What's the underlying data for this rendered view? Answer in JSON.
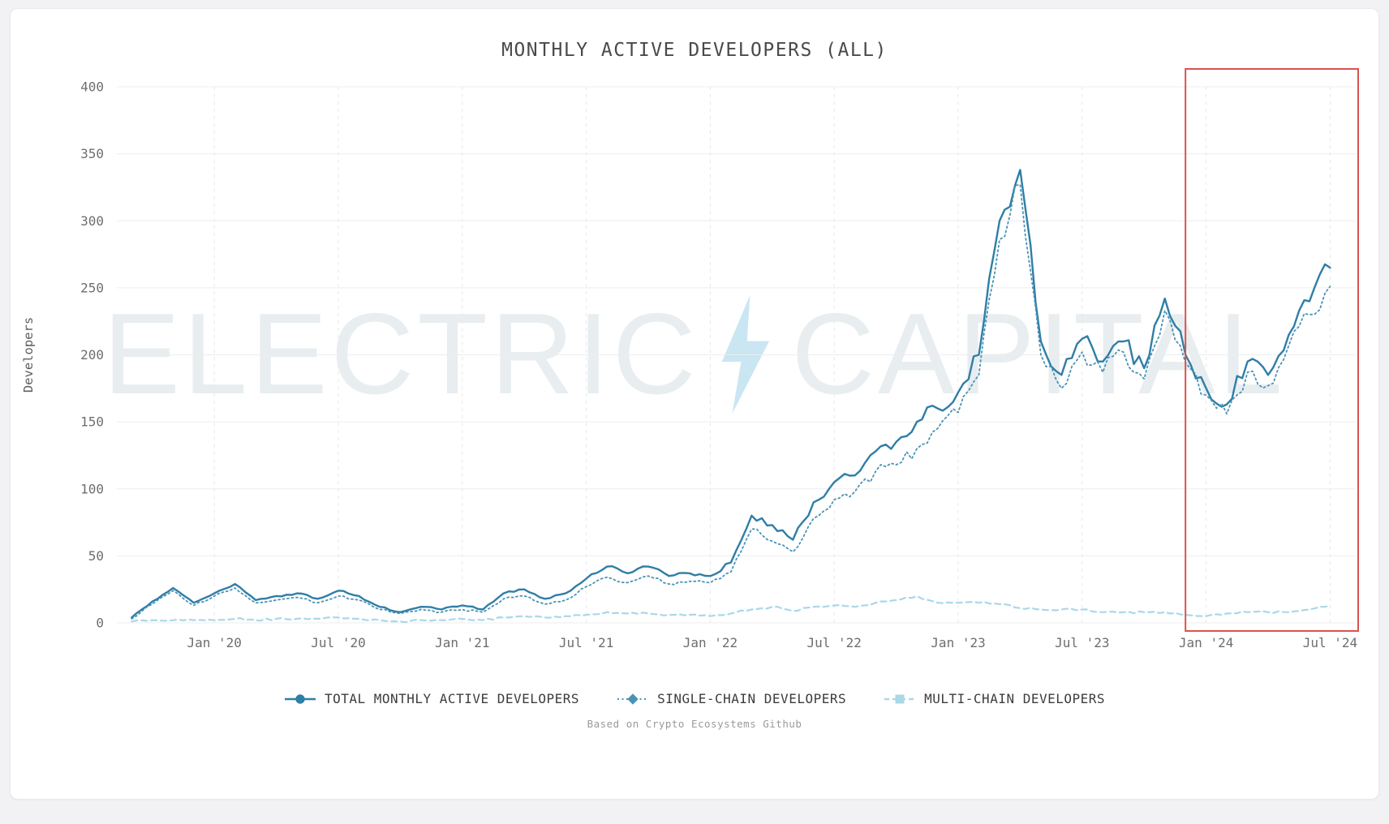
{
  "page": {
    "background_color": "#f2f2f4",
    "card_color": "#ffffff"
  },
  "chart_data": {
    "type": "line",
    "title": "MONTHLY ACTIVE DEVELOPERS (ALL)",
    "xlabel": "",
    "ylabel": "Developers",
    "ylim": [
      0,
      400
    ],
    "yticks": [
      0,
      50,
      100,
      150,
      200,
      250,
      300,
      350,
      400
    ],
    "xticks": [
      "2020-01",
      "2020-07",
      "2021-01",
      "2021-07",
      "2022-01",
      "2022-07",
      "2023-01",
      "2023-07",
      "2024-01",
      "2024-07"
    ],
    "xtick_labels": [
      "Jan '20",
      "Jul '20",
      "Jan '21",
      "Jul '21",
      "Jan '22",
      "Jul '22",
      "Jan '23",
      "Jul '23",
      "Jan '24",
      "Jul '24"
    ],
    "grid": true,
    "legend_position": "bottom",
    "caption": "Based on Crypto Ecosystems Github",
    "watermark": {
      "left": "ELECTRIC",
      "right": "CAPITAL",
      "bolt_icon": "lightning-bolt-icon",
      "bolt_color": "#c9e6f2"
    },
    "highlight": {
      "start_month": "2023-12",
      "end_month": "2024-08",
      "color": "#d9534f"
    },
    "months": [
      "2019-09",
      "2019-10",
      "2019-11",
      "2019-12",
      "2020-01",
      "2020-02",
      "2020-03",
      "2020-04",
      "2020-05",
      "2020-06",
      "2020-07",
      "2020-08",
      "2020-09",
      "2020-10",
      "2020-11",
      "2020-12",
      "2021-01",
      "2021-02",
      "2021-03",
      "2021-04",
      "2021-05",
      "2021-06",
      "2021-07",
      "2021-08",
      "2021-09",
      "2021-10",
      "2021-11",
      "2021-12",
      "2022-01",
      "2022-02",
      "2022-03",
      "2022-04",
      "2022-05",
      "2022-06",
      "2022-07",
      "2022-08",
      "2022-09",
      "2022-10",
      "2022-11",
      "2022-12",
      "2023-01",
      "2023-02",
      "2023-03",
      "2023-04",
      "2023-05",
      "2023-06",
      "2023-07",
      "2023-08",
      "2023-09",
      "2023-10",
      "2023-11",
      "2023-12",
      "2024-01",
      "2024-02",
      "2024-03",
      "2024-04",
      "2024-05",
      "2024-06",
      "2024-07"
    ],
    "series": [
      {
        "name": "TOTAL MONTHLY ACTIVE DEVELOPERS",
        "color": "#2f7ea6",
        "style": "solid",
        "marker": "circle",
        "values": [
          4,
          16,
          26,
          15,
          22,
          29,
          17,
          20,
          22,
          18,
          24,
          20,
          12,
          8,
          12,
          10,
          13,
          10,
          22,
          25,
          18,
          22,
          33,
          42,
          37,
          42,
          35,
          37,
          35,
          45,
          80,
          73,
          62,
          90,
          105,
          110,
          128,
          135,
          150,
          160,
          172,
          200,
          300,
          338,
          210,
          185,
          212,
          195,
          210,
          190,
          242,
          200,
          175,
          163,
          195,
          185,
          215,
          240,
          265
        ]
      },
      {
        "name": "SINGLE-CHAIN DEVELOPERS",
        "color": "#4b93b5",
        "style": "dotted",
        "marker": "diamond",
        "values": [
          3,
          14,
          24,
          13,
          20,
          26,
          15,
          17,
          19,
          15,
          20,
          17,
          10,
          7,
          10,
          8,
          10,
          8,
          18,
          20,
          14,
          17,
          27,
          34,
          30,
          35,
          29,
          31,
          30,
          38,
          70,
          61,
          53,
          78,
          92,
          98,
          113,
          118,
          130,
          145,
          157,
          185,
          286,
          327,
          200,
          175,
          202,
          187,
          202,
          182,
          233,
          194,
          170,
          156,
          187,
          177,
          207,
          230,
          251
        ]
      },
      {
        "name": "MULTI-CHAIN DEVELOPERS",
        "color": "#a9d8e8",
        "style": "dashed",
        "marker": "square",
        "values": [
          1,
          2,
          2,
          2,
          2,
          3,
          2,
          3,
          3,
          3,
          4,
          3,
          2,
          1,
          2,
          2,
          3,
          2,
          4,
          5,
          4,
          5,
          6,
          8,
          7,
          7,
          6,
          6,
          5,
          7,
          10,
          12,
          9,
          12,
          13,
          12,
          15,
          17,
          20,
          15,
          15,
          15,
          14,
          11,
          10,
          10,
          10,
          8,
          8,
          8,
          8,
          6,
          5,
          7,
          8,
          8,
          8,
          10,
          13
        ]
      }
    ]
  }
}
